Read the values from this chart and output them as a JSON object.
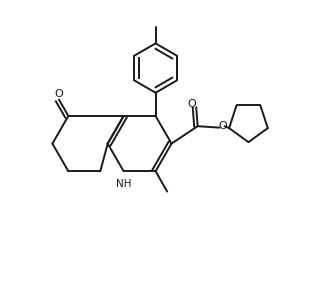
{
  "background_color": "#ffffff",
  "line_color": "#1a1a1a",
  "line_width": 1.4,
  "figsize": [
    3.11,
    2.93
  ],
  "dpi": 100,
  "xlim": [
    0.0,
    1.0
  ],
  "ylim": [
    0.0,
    1.0
  ]
}
